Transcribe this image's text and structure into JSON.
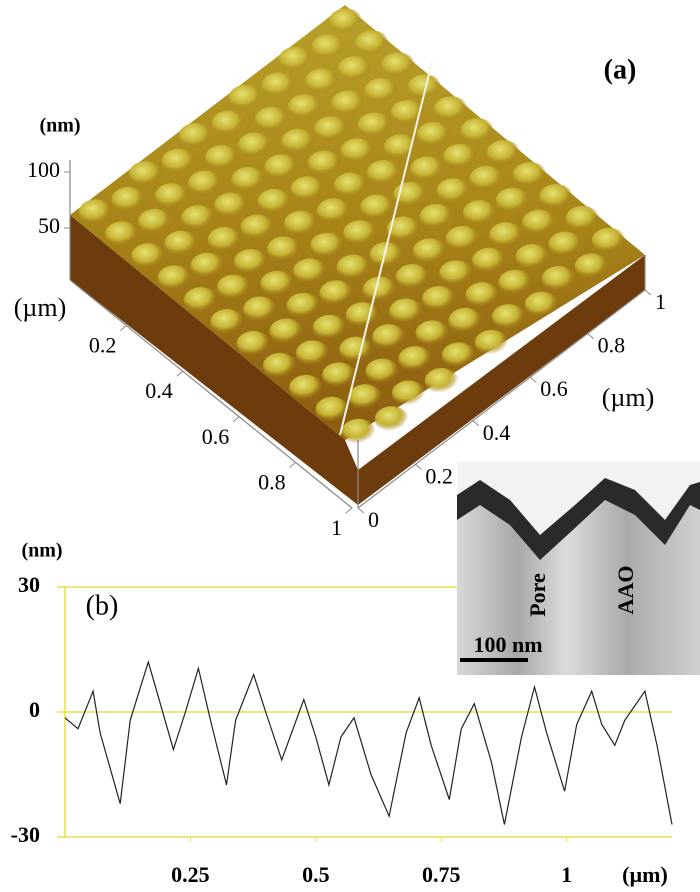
{
  "chart_data": [
    {
      "type": "surface3d",
      "label": "(a)",
      "zlabel": "(nm)",
      "zlim": [
        0,
        100
      ],
      "zticks": [
        50,
        100
      ],
      "xlabel": "(µm)",
      "xlim": [
        0,
        1
      ],
      "xticks": [
        0.2,
        0.4,
        0.6,
        0.8,
        1
      ],
      "ylabel": "(µm)",
      "ylim": [
        0,
        1
      ],
      "yticks": [
        0,
        0.2,
        0.4,
        0.6,
        0.8,
        1
      ]
    },
    {
      "type": "line",
      "label": "(b)",
      "ylabel": "(nm)",
      "xlabel": "(µm)",
      "xlim": [
        0,
        1.21
      ],
      "ylim": [
        -30,
        30
      ],
      "yticks": [
        -30,
        0,
        30
      ],
      "xticks": [
        0.25,
        0.5,
        0.75,
        1
      ],
      "grid": true,
      "grid_color": "#e8e04a",
      "series": [
        {
          "color": "#222222",
          "x": [
            0,
            0.026,
            0.056,
            0.07,
            0.11,
            0.13,
            0.166,
            0.19,
            0.216,
            0.24,
            0.266,
            0.29,
            0.322,
            0.34,
            0.376,
            0.4,
            0.432,
            0.476,
            0.5,
            0.526,
            0.55,
            0.576,
            0.61,
            0.646,
            0.68,
            0.706,
            0.73,
            0.766,
            0.79,
            0.816,
            0.85,
            0.876,
            0.91,
            0.936,
            0.96,
            0.996,
            1.02,
            1.05,
            1.07,
            1.096,
            1.116,
            1.156,
            1.18,
            1.21
          ],
          "values": [
            -1.4,
            -4,
            5,
            -5,
            -22,
            -2,
            12,
            2,
            -9,
            0,
            10.5,
            -2,
            -17.5,
            -2,
            9,
            0,
            -11.5,
            3,
            -6,
            -17.5,
            -6,
            -1.4,
            -15,
            -25,
            -5,
            3.4,
            -8,
            -21,
            -4,
            2,
            -12,
            -27,
            -6,
            6,
            -5,
            -19,
            -3,
            5,
            -3,
            -8,
            -2,
            5,
            -8,
            -27
          ]
        }
      ]
    }
  ],
  "inset": {
    "pore": "Pore",
    "aao": "AAO",
    "scale": "100 nm"
  }
}
